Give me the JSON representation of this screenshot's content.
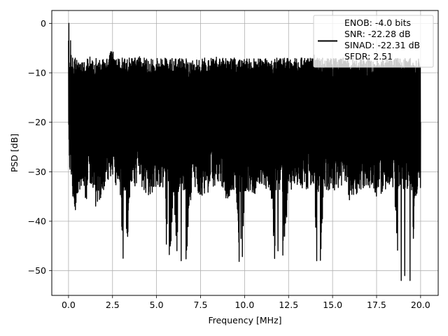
{
  "chart_data": {
    "type": "line",
    "xlabel": "Frequency [MHz]",
    "ylabel": "PSD [dB]",
    "xlim": [
      -0.95,
      21.0
    ],
    "ylim": [
      -55.0,
      2.6
    ],
    "x_ticks": [
      0.0,
      2.5,
      5.0,
      7.5,
      10.0,
      12.5,
      15.0,
      17.5,
      20.0
    ],
    "x_tick_labels": [
      "0.0",
      "2.5",
      "5.0",
      "7.5",
      "10.0",
      "12.5",
      "15.0",
      "17.5",
      "20.0"
    ],
    "y_ticks": [
      0,
      -10,
      -20,
      -30,
      -40,
      -50
    ],
    "y_tick_labels": [
      "0",
      "−10",
      "−20",
      "−30",
      "−40",
      "−50"
    ],
    "grid": true,
    "legend_position": "top-right",
    "colors": {
      "series": "#000000",
      "grid": "#b0b0b0"
    },
    "series": [
      {
        "name": "ENOB: -4.0 bits\nSNR: -22.28 dB\nSINAD: -22.31 dB\nSFDR: 2.51",
        "legend_lines": [
          "ENOB: -4.0 bits",
          "SNR: -22.28 dB",
          "SINAD: -22.31 dB",
          "SFDR: 2.51"
        ],
        "color": "#000000",
        "x": [
          0.0,
          0.02,
          0.04,
          0.06,
          0.1,
          0.2,
          0.3,
          0.5,
          0.8,
          1.0,
          1.2,
          1.5,
          2.0,
          2.5,
          3.0,
          3.1,
          3.5,
          4.0,
          4.5,
          5.0,
          5.5,
          5.6,
          6.0,
          6.4,
          7.0,
          7.5,
          8.0,
          8.5,
          9.0,
          9.5,
          9.8,
          10.0,
          10.5,
          11.0,
          11.5,
          11.9,
          12.5,
          13.0,
          13.5,
          14.0,
          14.1,
          14.5,
          15.0,
          15.5,
          16.0,
          16.5,
          17.0,
          17.5,
          18.0,
          18.5,
          18.9,
          19.1,
          19.4,
          19.7,
          20.0
        ],
        "values": [
          -3.5,
          0.0,
          -8.0,
          -22.0,
          -14.0,
          -20.0,
          -26.0,
          -21.0,
          -19.0,
          -22.0,
          -18.0,
          -24.0,
          -20.0,
          -17.0,
          -22.0,
          -47.5,
          -20.0,
          -18.0,
          -21.0,
          -20.0,
          -19.0,
          -40.5,
          -22.0,
          -48.0,
          -19.0,
          -21.0,
          -20.0,
          -18.0,
          -22.0,
          -19.0,
          -43.5,
          -20.0,
          -21.0,
          -19.0,
          -20.0,
          -46.0,
          -21.0,
          -19.0,
          -20.0,
          -18.0,
          -48.0,
          -21.0,
          -20.0,
          -19.0,
          -22.0,
          -20.0,
          -19.0,
          -21.0,
          -20.0,
          -19.0,
          -52.0,
          -51.0,
          -52.0,
          -21.0,
          -20.0
        ]
      }
    ]
  }
}
